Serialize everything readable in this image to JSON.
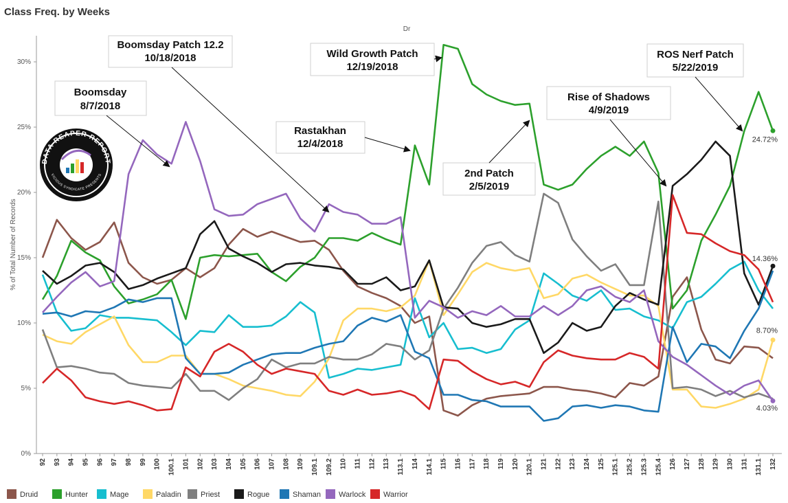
{
  "chart_data": {
    "type": "line",
    "title": "Class Freq. by Weeks",
    "subtitle": "Dr",
    "ylabel": "% of Total Number of Records",
    "xlabel": "",
    "ylim": [
      0,
      32
    ],
    "yticks": [
      "0%",
      "5%",
      "10%",
      "15%",
      "20%",
      "25%",
      "30%"
    ],
    "grid": false,
    "legend_position": "bottom",
    "categories": [
      "92",
      "93",
      "94",
      "95",
      "96",
      "97",
      "98",
      "99",
      "100",
      "100.1",
      "101",
      "102",
      "103",
      "104",
      "105",
      "106",
      "107",
      "108",
      "109",
      "109.1",
      "109.2",
      "110",
      "111",
      "112",
      "113",
      "113.1",
      "114",
      "114.1",
      "115",
      "116",
      "117",
      "118",
      "119",
      "120",
      "120.1",
      "121",
      "122",
      "123",
      "124",
      "125",
      "125.1",
      "125.2",
      "125.3",
      "125.4",
      "126",
      "127",
      "128",
      "129",
      "130",
      "131",
      "131.1",
      "132"
    ],
    "series": [
      {
        "name": "Druid",
        "color": "#8c564b",
        "values": [
          15.0,
          17.9,
          16.5,
          15.6,
          16.2,
          17.7,
          14.6,
          13.5,
          13.0,
          13.3,
          14.2,
          13.5,
          14.2,
          16.0,
          17.2,
          16.6,
          17.0,
          16.6,
          16.2,
          16.3,
          15.6,
          14.0,
          12.8,
          12.3,
          11.9,
          11.3,
          10.0,
          10.5,
          3.3,
          2.9,
          3.7,
          4.2,
          4.4,
          4.5,
          4.6,
          5.1,
          5.1,
          4.9,
          4.8,
          4.6,
          4.3,
          5.4,
          5.2,
          5.9,
          12.0,
          13.5,
          9.5,
          7.2,
          6.9,
          8.2,
          8.1,
          7.3
        ]
      },
      {
        "name": "Hunter",
        "color": "#2ca02c",
        "values": [
          11.8,
          13.6,
          16.3,
          15.4,
          14.8,
          12.8,
          11.5,
          11.8,
          12.2,
          13.3,
          10.3,
          15.0,
          15.2,
          15.1,
          15.2,
          15.3,
          13.9,
          13.2,
          14.3,
          15.0,
          16.5,
          16.5,
          16.3,
          16.9,
          16.4,
          16.0,
          23.6,
          20.6,
          31.3,
          31.0,
          28.3,
          27.5,
          27.0,
          26.7,
          26.8,
          20.6,
          20.2,
          20.6,
          21.8,
          22.8,
          23.5,
          22.8,
          23.9,
          21.5,
          11.1,
          12.5,
          16.3,
          18.3,
          20.5,
          24.7,
          27.7,
          24.72
        ]
      },
      {
        "name": "Mage",
        "color": "#17becf",
        "values": [
          13.7,
          10.8,
          9.4,
          9.6,
          10.6,
          10.4,
          10.4,
          10.3,
          10.2,
          9.3,
          8.3,
          9.4,
          9.3,
          10.6,
          9.7,
          9.7,
          9.8,
          10.5,
          11.6,
          10.8,
          5.8,
          6.1,
          6.5,
          6.4,
          6.6,
          6.8,
          11.9,
          8.9,
          10.0,
          8.0,
          8.1,
          7.7,
          8.0,
          9.5,
          10.2,
          13.8,
          13.0,
          12.1,
          11.7,
          12.5,
          11.0,
          11.1,
          10.5,
          10.2,
          9.6,
          11.6,
          12.0,
          13.0,
          14.1,
          14.7,
          12.5,
          11.1
        ]
      },
      {
        "name": "Paladin",
        "color": "#ffd866",
        "values": [
          9.1,
          8.6,
          8.4,
          9.3,
          9.9,
          10.5,
          8.3,
          7.0,
          7.0,
          7.5,
          7.5,
          6.1,
          6.1,
          5.7,
          5.2,
          5.0,
          4.8,
          4.5,
          4.4,
          5.5,
          7.3,
          10.2,
          11.1,
          11.1,
          10.9,
          11.2,
          12.1,
          14.8,
          10.6,
          12.2,
          13.9,
          14.6,
          14.2,
          14.0,
          14.2,
          11.9,
          12.2,
          13.4,
          13.7,
          13.1,
          12.6,
          12.1,
          12.1,
          11.3,
          4.9,
          4.9,
          3.6,
          3.5,
          3.8,
          4.2,
          4.9,
          8.7
        ]
      },
      {
        "name": "Priest",
        "color": "#7f7f7f",
        "values": [
          9.5,
          6.6,
          6.7,
          6.5,
          6.2,
          6.1,
          5.4,
          5.2,
          5.1,
          5.0,
          6.1,
          4.8,
          4.8,
          4.1,
          5.0,
          5.7,
          7.2,
          6.6,
          6.9,
          6.9,
          7.4,
          7.2,
          7.2,
          7.6,
          8.4,
          8.2,
          7.2,
          7.9,
          11.1,
          12.7,
          14.6,
          15.9,
          16.2,
          15.2,
          14.7,
          19.9,
          19.2,
          16.4,
          15.1,
          14.0,
          14.5,
          12.9,
          12.9,
          19.3,
          5.0,
          5.1,
          4.9,
          4.4,
          4.8,
          4.3,
          4.6,
          4.2
        ]
      },
      {
        "name": "Rogue",
        "color": "#1a1a1a",
        "values": [
          14.0,
          13.0,
          13.6,
          14.4,
          14.6,
          13.9,
          12.6,
          12.9,
          13.4,
          13.8,
          14.2,
          16.8,
          17.8,
          15.7,
          15.1,
          14.6,
          13.9,
          14.5,
          14.6,
          14.4,
          14.3,
          14.1,
          13.0,
          13.0,
          13.5,
          12.5,
          12.8,
          14.8,
          11.2,
          11.1,
          10.0,
          9.7,
          9.9,
          10.3,
          10.3,
          7.7,
          8.5,
          10.0,
          9.4,
          9.7,
          11.3,
          12.3,
          11.8,
          11.4,
          20.5,
          21.4,
          22.5,
          23.9,
          22.8,
          13.8,
          11.4,
          14.36
        ]
      },
      {
        "name": "Shaman",
        "color": "#1f77b4",
        "values": [
          10.7,
          10.8,
          10.5,
          10.9,
          10.8,
          11.2,
          11.8,
          11.6,
          11.9,
          11.9,
          7.3,
          6.1,
          6.1,
          6.2,
          6.8,
          7.2,
          7.6,
          7.7,
          7.7,
          8.1,
          8.4,
          8.6,
          9.8,
          10.4,
          10.1,
          10.6,
          7.8,
          7.3,
          4.5,
          4.5,
          4.1,
          4.0,
          3.6,
          3.6,
          3.6,
          2.5,
          2.7,
          3.6,
          3.7,
          3.5,
          3.7,
          3.6,
          3.3,
          3.2,
          9.7,
          7.0,
          8.4,
          8.2,
          7.3,
          9.4,
          11.1,
          14.0
        ]
      },
      {
        "name": "Warlock",
        "color": "#9467bd",
        "values": [
          10.8,
          12.0,
          13.1,
          13.9,
          12.8,
          13.2,
          21.4,
          24.0,
          22.9,
          22.2,
          25.4,
          22.4,
          18.7,
          18.2,
          18.3,
          19.1,
          19.5,
          19.9,
          18.0,
          17.0,
          19.1,
          18.5,
          18.3,
          17.6,
          17.6,
          18.1,
          10.4,
          11.7,
          11.2,
          10.4,
          10.9,
          10.6,
          11.3,
          10.5,
          10.5,
          11.3,
          10.6,
          11.3,
          12.5,
          12.8,
          12.0,
          11.6,
          12.5,
          8.6,
          7.4,
          6.8,
          6.0,
          5.2,
          4.5,
          5.2,
          5.6,
          4.03
        ]
      },
      {
        "name": "Warrior",
        "color": "#d62728",
        "values": [
          5.4,
          6.5,
          5.6,
          4.3,
          4.0,
          3.8,
          4.0,
          3.7,
          3.3,
          3.4,
          6.6,
          5.9,
          7.8,
          8.4,
          7.8,
          6.8,
          6.1,
          6.5,
          6.3,
          6.1,
          4.8,
          4.5,
          4.9,
          4.5,
          4.6,
          4.8,
          4.4,
          3.4,
          7.2,
          7.1,
          6.3,
          5.7,
          5.3,
          5.5,
          5.1,
          7.0,
          7.9,
          7.5,
          7.3,
          7.2,
          7.2,
          7.7,
          7.4,
          6.5,
          19.8,
          16.9,
          16.8,
          16.1,
          15.5,
          15.2,
          14.1,
          11.6
        ]
      }
    ],
    "end_labels": [
      "24.72%",
      "14.36%",
      "8.70%",
      "4.03%"
    ],
    "annotations": [
      {
        "line1": "Boomsday",
        "line2": "8/7/2018"
      },
      {
        "line1": "Boomsday Patch 12.2",
        "line2": "10/18/2018"
      },
      {
        "line1": "Rastakhan",
        "line2": "12/4/2018"
      },
      {
        "line1": "Wild Growth Patch",
        "line2": "12/19/2018"
      },
      {
        "line1": "2nd Patch",
        "line2": "2/5/2019"
      },
      {
        "line1": "Rise of Shadows",
        "line2": "4/9/2019"
      },
      {
        "line1": "ROS Nerf Patch",
        "line2": "5/22/2019"
      }
    ],
    "logo": {
      "text": "DATA REAPER REPORT",
      "sub": "VICIOUS SYNDICATE PRESENTS"
    }
  }
}
